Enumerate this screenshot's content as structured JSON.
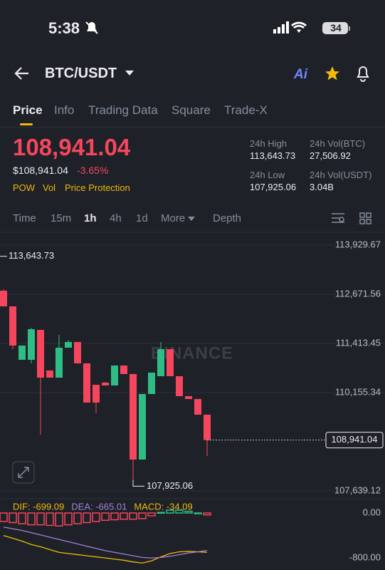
{
  "status": {
    "time": "5:38",
    "battery": "34"
  },
  "header": {
    "pair": "BTC/USDT",
    "ai": "Ai"
  },
  "tabs": [
    "Price",
    "Info",
    "Trading Data",
    "Square",
    "Trade-X"
  ],
  "price": {
    "last": "108,941.04",
    "fiat": "$108,941.04",
    "change": "-3.65%",
    "tags": [
      "POW",
      "Vol",
      "Price Protection"
    ]
  },
  "stats": [
    {
      "label": "24h High",
      "value": "113,643.73"
    },
    {
      "label": "24h Vol(BTC)",
      "value": "27,506.92"
    },
    {
      "label": "24h Low",
      "value": "107,925.06"
    },
    {
      "label": "24h Vol(USDT)",
      "value": "3.04B"
    }
  ],
  "intervals": [
    "Time",
    "15m",
    "1h",
    "4h",
    "1d",
    "More",
    "Depth"
  ],
  "chart_data": [
    {
      "type": "candlestick",
      "watermark": "BINANCE",
      "open": [
        112763,
        112362,
        110994,
        110994,
        111760,
        110721,
        110538,
        111304,
        111450,
        110903,
        110356,
        110411,
        110338,
        110848,
        110630,
        108442,
        110119,
        110575,
        111267,
        110575,
        110064,
        109991,
        109590
      ],
      "high": [
        112800,
        112362,
        111359,
        111815,
        111760,
        110721,
        111632,
        111500,
        111450,
        110903,
        110356,
        110430,
        110848,
        110848,
        110630,
        110119,
        110666,
        111450,
        111267,
        110575,
        110064,
        109991,
        109590
      ],
      "low": [
        112362,
        111268,
        110994,
        110903,
        109080,
        110538,
        110538,
        111304,
        110903,
        109900,
        109627,
        110338,
        110338,
        110630,
        107925.06,
        108442,
        110119,
        110575,
        110575,
        110064,
        109991,
        109590,
        108533
      ],
      "close": [
        112362,
        111359,
        111359,
        111778,
        110538,
        110538,
        111304,
        111450,
        110903,
        109900,
        109900,
        110338,
        110848,
        110630,
        108442,
        110119,
        110666,
        111267,
        110575,
        110064,
        109991,
        109590,
        108941.04
      ],
      "up_color": "#2ebd85",
      "down_color": "#f6465d",
      "ylim": [
        107439,
        114185
      ],
      "yticks": [
        {
          "value": 113929.67,
          "label": "113,929.67"
        },
        {
          "value": 112671.56,
          "label": "112,671.56"
        },
        {
          "value": 111413.45,
          "label": "111,413.45"
        },
        {
          "value": 110155.34,
          "label": "110,155.34"
        },
        {
          "value": 107639.12,
          "label": "107,639.12"
        }
      ],
      "grid": true,
      "last_price": {
        "value": 108941.04,
        "label": "108,941.04"
      },
      "high_marker": {
        "value": 113643.73,
        "label": "113,643.73"
      },
      "low_marker": {
        "value": 107925.06,
        "label": "107,925.06"
      }
    },
    {
      "type": "macd",
      "series": [
        {
          "name": "DIF: -699.09",
          "color": "#f0b90b",
          "values": [
            -400,
            -450,
            -500,
            -560,
            -600,
            -650,
            -700,
            -720,
            -740,
            -760,
            -780,
            -800,
            -820,
            -840,
            -870,
            -890,
            -850,
            -780,
            -720,
            -690,
            -680,
            -690,
            -699.09
          ]
        },
        {
          "name": "DEA: -665.01",
          "color": "#a77fd8",
          "values": [
            -250,
            -280,
            -310,
            -350,
            -390,
            -430,
            -470,
            -510,
            -550,
            -590,
            -630,
            -670,
            -700,
            -730,
            -760,
            -790,
            -800,
            -790,
            -770,
            -740,
            -710,
            -690,
            -665.01
          ]
        },
        {
          "name": "MACD: -34.09",
          "color": "#f0b90b",
          "type": "histogram",
          "values": [
            -150,
            -170,
            -190,
            -210,
            -210,
            -220,
            -230,
            -210,
            -190,
            -170,
            -150,
            -130,
            -120,
            -110,
            -110,
            -100,
            -50,
            10,
            50,
            50,
            30,
            0,
            -34.09
          ]
        }
      ],
      "up_color": "#2ebd85",
      "down_color": "#f6465d",
      "ylim": [
        -950,
        190
      ],
      "yticks": [
        {
          "value": 0,
          "label": "0.00"
        },
        {
          "value": -800,
          "label": "-800.00"
        }
      ]
    }
  ]
}
